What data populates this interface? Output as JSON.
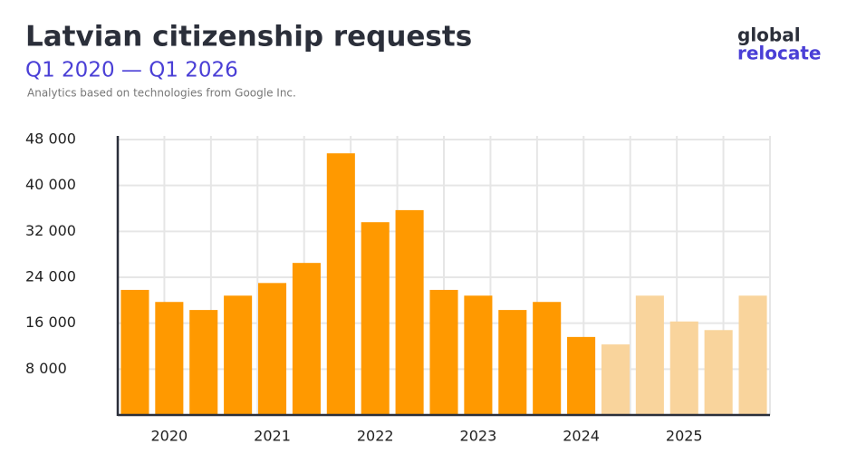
{
  "chart_data": {
    "type": "bar",
    "title": "Latvian citizenship requests",
    "subtitle": "Q1 2020 — Q1 2026",
    "note": "Analytics based on technologies from Google Inc.",
    "categories": [
      null,
      "2020",
      null,
      null,
      "2021",
      null,
      null,
      "2022",
      null,
      null,
      "2023",
      null,
      null,
      "2024",
      null,
      null,
      "2025",
      null,
      null
    ],
    "values": [
      21800,
      19700,
      18300,
      20800,
      23000,
      26500,
      45600,
      33600,
      35700,
      21800,
      20800,
      18300,
      19700,
      13600,
      12300,
      20800,
      16300,
      14800,
      20800
    ],
    "colors": [
      "#ff9900",
      "#ff9900",
      "#ff9900",
      "#ff9900",
      "#ff9900",
      "#ff9900",
      "#ff9900",
      "#ff9900",
      "#ff9900",
      "#ff9900",
      "#ff9900",
      "#ff9900",
      "#ff9900",
      "#ff9900",
      "#f9d49c",
      "#f9d49c",
      "#f9d49c",
      "#f9d49c",
      "#f9d49c"
    ],
    "ylim": [
      0,
      48000
    ],
    "yticks": [
      {
        "value": 8000,
        "label": "8 000"
      },
      {
        "value": 16000,
        "label": "16 000"
      },
      {
        "value": 24000,
        "label": "24 000"
      },
      {
        "value": 32000,
        "label": "32 000"
      },
      {
        "value": 40000,
        "label": "40 000"
      },
      {
        "value": 48000,
        "label": "48 000"
      }
    ],
    "grid": true
  },
  "logo": {
    "line1": "global",
    "line2": "relocate"
  }
}
